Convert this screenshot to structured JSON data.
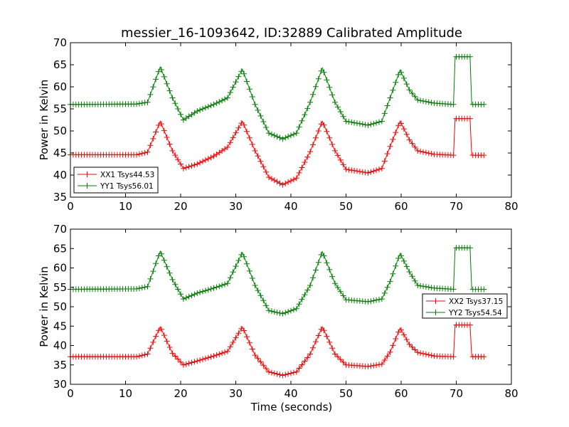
{
  "figure": {
    "title": "messier_16-1093642, ID:32889 Calibrated Amplitude",
    "xlabel": "Time (seconds)"
  },
  "chart_data": [
    {
      "type": "line",
      "title": "messier_16-1093642, ID:32889 Calibrated Amplitude",
      "xlabel": "",
      "ylabel": "Power in Kelvin",
      "xlim": [
        0,
        80
      ],
      "ylim": [
        35,
        70
      ],
      "xticks": [
        0,
        10,
        20,
        30,
        40,
        50,
        60,
        70,
        80
      ],
      "yticks": [
        35,
        40,
        45,
        50,
        55,
        60,
        65,
        70
      ],
      "grid": false,
      "legend": "lower-left",
      "series": [
        {
          "name": "XX1 Tsys44.53",
          "color": "#ff0000",
          "marker": "+",
          "x": [
            0,
            12,
            14,
            16.3,
            18.5,
            20.5,
            23,
            26,
            28.5,
            31.2,
            33.5,
            36,
            38.5,
            41,
            43.5,
            45.7,
            48,
            50,
            54,
            56.5,
            58,
            59.8,
            61.5,
            63,
            66,
            69.5,
            69.8,
            72.5,
            72.8,
            75
          ],
          "values": [
            44.6,
            44.6,
            45.2,
            52.2,
            45.5,
            41.5,
            42.5,
            44.3,
            46.3,
            52.2,
            45.5,
            39.5,
            37.8,
            39.3,
            45.3,
            52.2,
            45.5,
            41.3,
            40.5,
            41.5,
            46.5,
            52.2,
            48,
            45.5,
            44.7,
            44.5,
            52.8,
            52.8,
            44.5,
            44.5
          ]
        },
        {
          "name": "YY1 Tsys56.01",
          "color": "#008000",
          "marker": "+",
          "x": [
            0,
            12,
            14,
            16.3,
            18.5,
            20.5,
            23,
            26,
            28.5,
            31.2,
            33.5,
            36,
            38.5,
            41,
            43.5,
            45.7,
            48,
            50,
            54,
            56.5,
            58,
            59.8,
            61.5,
            63,
            66,
            69.5,
            69.8,
            72.5,
            72.8,
            75
          ],
          "values": [
            56,
            56.1,
            56.5,
            64.5,
            57.5,
            52.5,
            54.5,
            56,
            57.5,
            64,
            56,
            49.5,
            48.2,
            49.5,
            56.5,
            64.3,
            56.5,
            52.2,
            51.3,
            52.2,
            57.5,
            63.8,
            59.3,
            57,
            56.3,
            56,
            66.8,
            66.8,
            56,
            56
          ]
        }
      ]
    },
    {
      "type": "line",
      "title": "",
      "xlabel": "Time (seconds)",
      "ylabel": "Power in Kelvin",
      "xlim": [
        0,
        80
      ],
      "ylim": [
        30,
        70
      ],
      "xticks": [
        0,
        10,
        20,
        30,
        40,
        50,
        60,
        70,
        80
      ],
      "yticks": [
        30,
        35,
        40,
        45,
        50,
        55,
        60,
        65,
        70
      ],
      "grid": false,
      "legend": "center-right",
      "series": [
        {
          "name": "XX2 Tsys37.15",
          "color": "#ff0000",
          "marker": "+",
          "x": [
            0,
            12,
            14,
            16.3,
            18.5,
            20.5,
            23,
            26,
            28.5,
            31.2,
            33.5,
            36,
            38.5,
            41,
            43.5,
            45.7,
            48,
            50,
            54,
            56.5,
            58,
            59.8,
            61.5,
            63,
            66,
            69.5,
            69.8,
            72.5,
            72.8,
            75
          ],
          "values": [
            37.1,
            37.1,
            37.8,
            44.8,
            38,
            35,
            36,
            37.3,
            38.5,
            44.8,
            37.5,
            33.2,
            32.3,
            33.2,
            37.8,
            44.8,
            37.8,
            35,
            34.6,
            35.2,
            38.3,
            44.5,
            40.3,
            38.2,
            37.3,
            37.1,
            45.3,
            45.3,
            37.1,
            37.1
          ]
        },
        {
          "name": "YY2 Tsys54.54",
          "color": "#008000",
          "marker": "+",
          "x": [
            0,
            12,
            14,
            16.3,
            18.5,
            20.5,
            23,
            26,
            28.5,
            31.2,
            33.5,
            36,
            38.5,
            41,
            43.5,
            45.7,
            48,
            50,
            54,
            56.5,
            58,
            59.8,
            61.5,
            63,
            66,
            69.5,
            69.8,
            72.5,
            72.8,
            75
          ],
          "values": [
            54.5,
            54.6,
            55.2,
            64.3,
            57,
            52,
            53.5,
            54.8,
            56,
            64,
            55.5,
            49,
            48.2,
            49.5,
            55.5,
            64.2,
            56,
            51.8,
            51.3,
            52,
            56.5,
            63.7,
            59,
            55.5,
            54.8,
            54.5,
            65.2,
            65.2,
            54.5,
            54.5
          ]
        }
      ]
    }
  ]
}
